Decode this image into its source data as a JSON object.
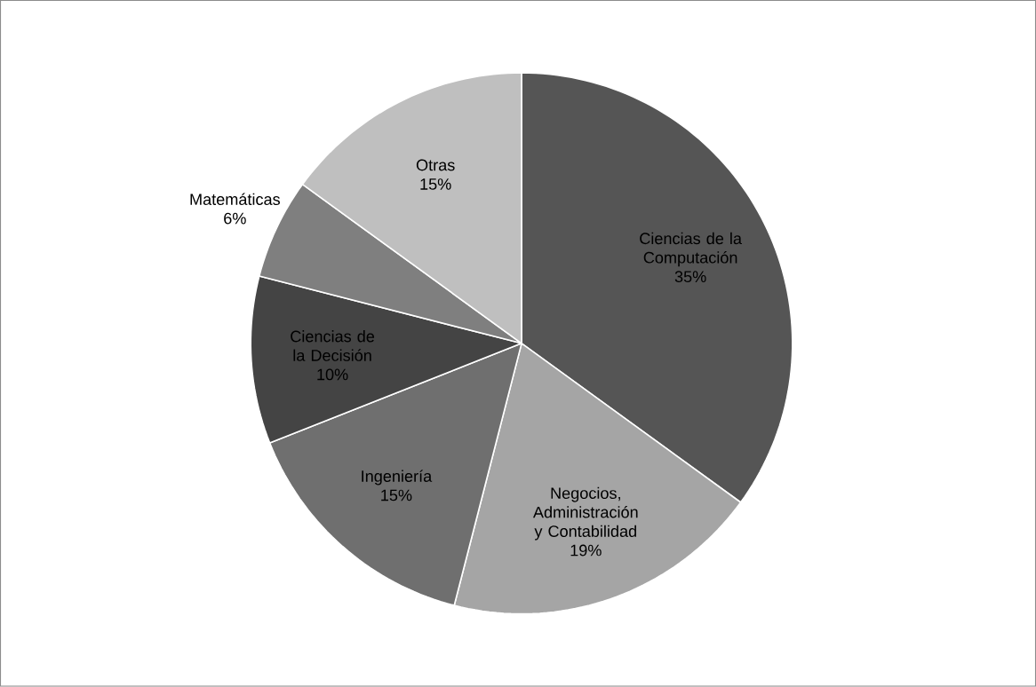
{
  "chart_data": {
    "type": "pie",
    "categories": [
      "Ciencias de la Computación",
      "Negocios, Administración y Contabilidad",
      "Ingeniería",
      "Ciencias de la Decisión",
      "Matemáticas",
      "Otras"
    ],
    "values": [
      35,
      19,
      15,
      10,
      6,
      15
    ],
    "colors": [
      "#555555",
      "#a5a5a5",
      "#6f6f6f",
      "#444444",
      "#7f7f7f",
      "#bfbfbf"
    ],
    "value_labels": [
      "35%",
      "19%",
      "15%",
      "10%",
      "6%",
      "15%"
    ]
  }
}
